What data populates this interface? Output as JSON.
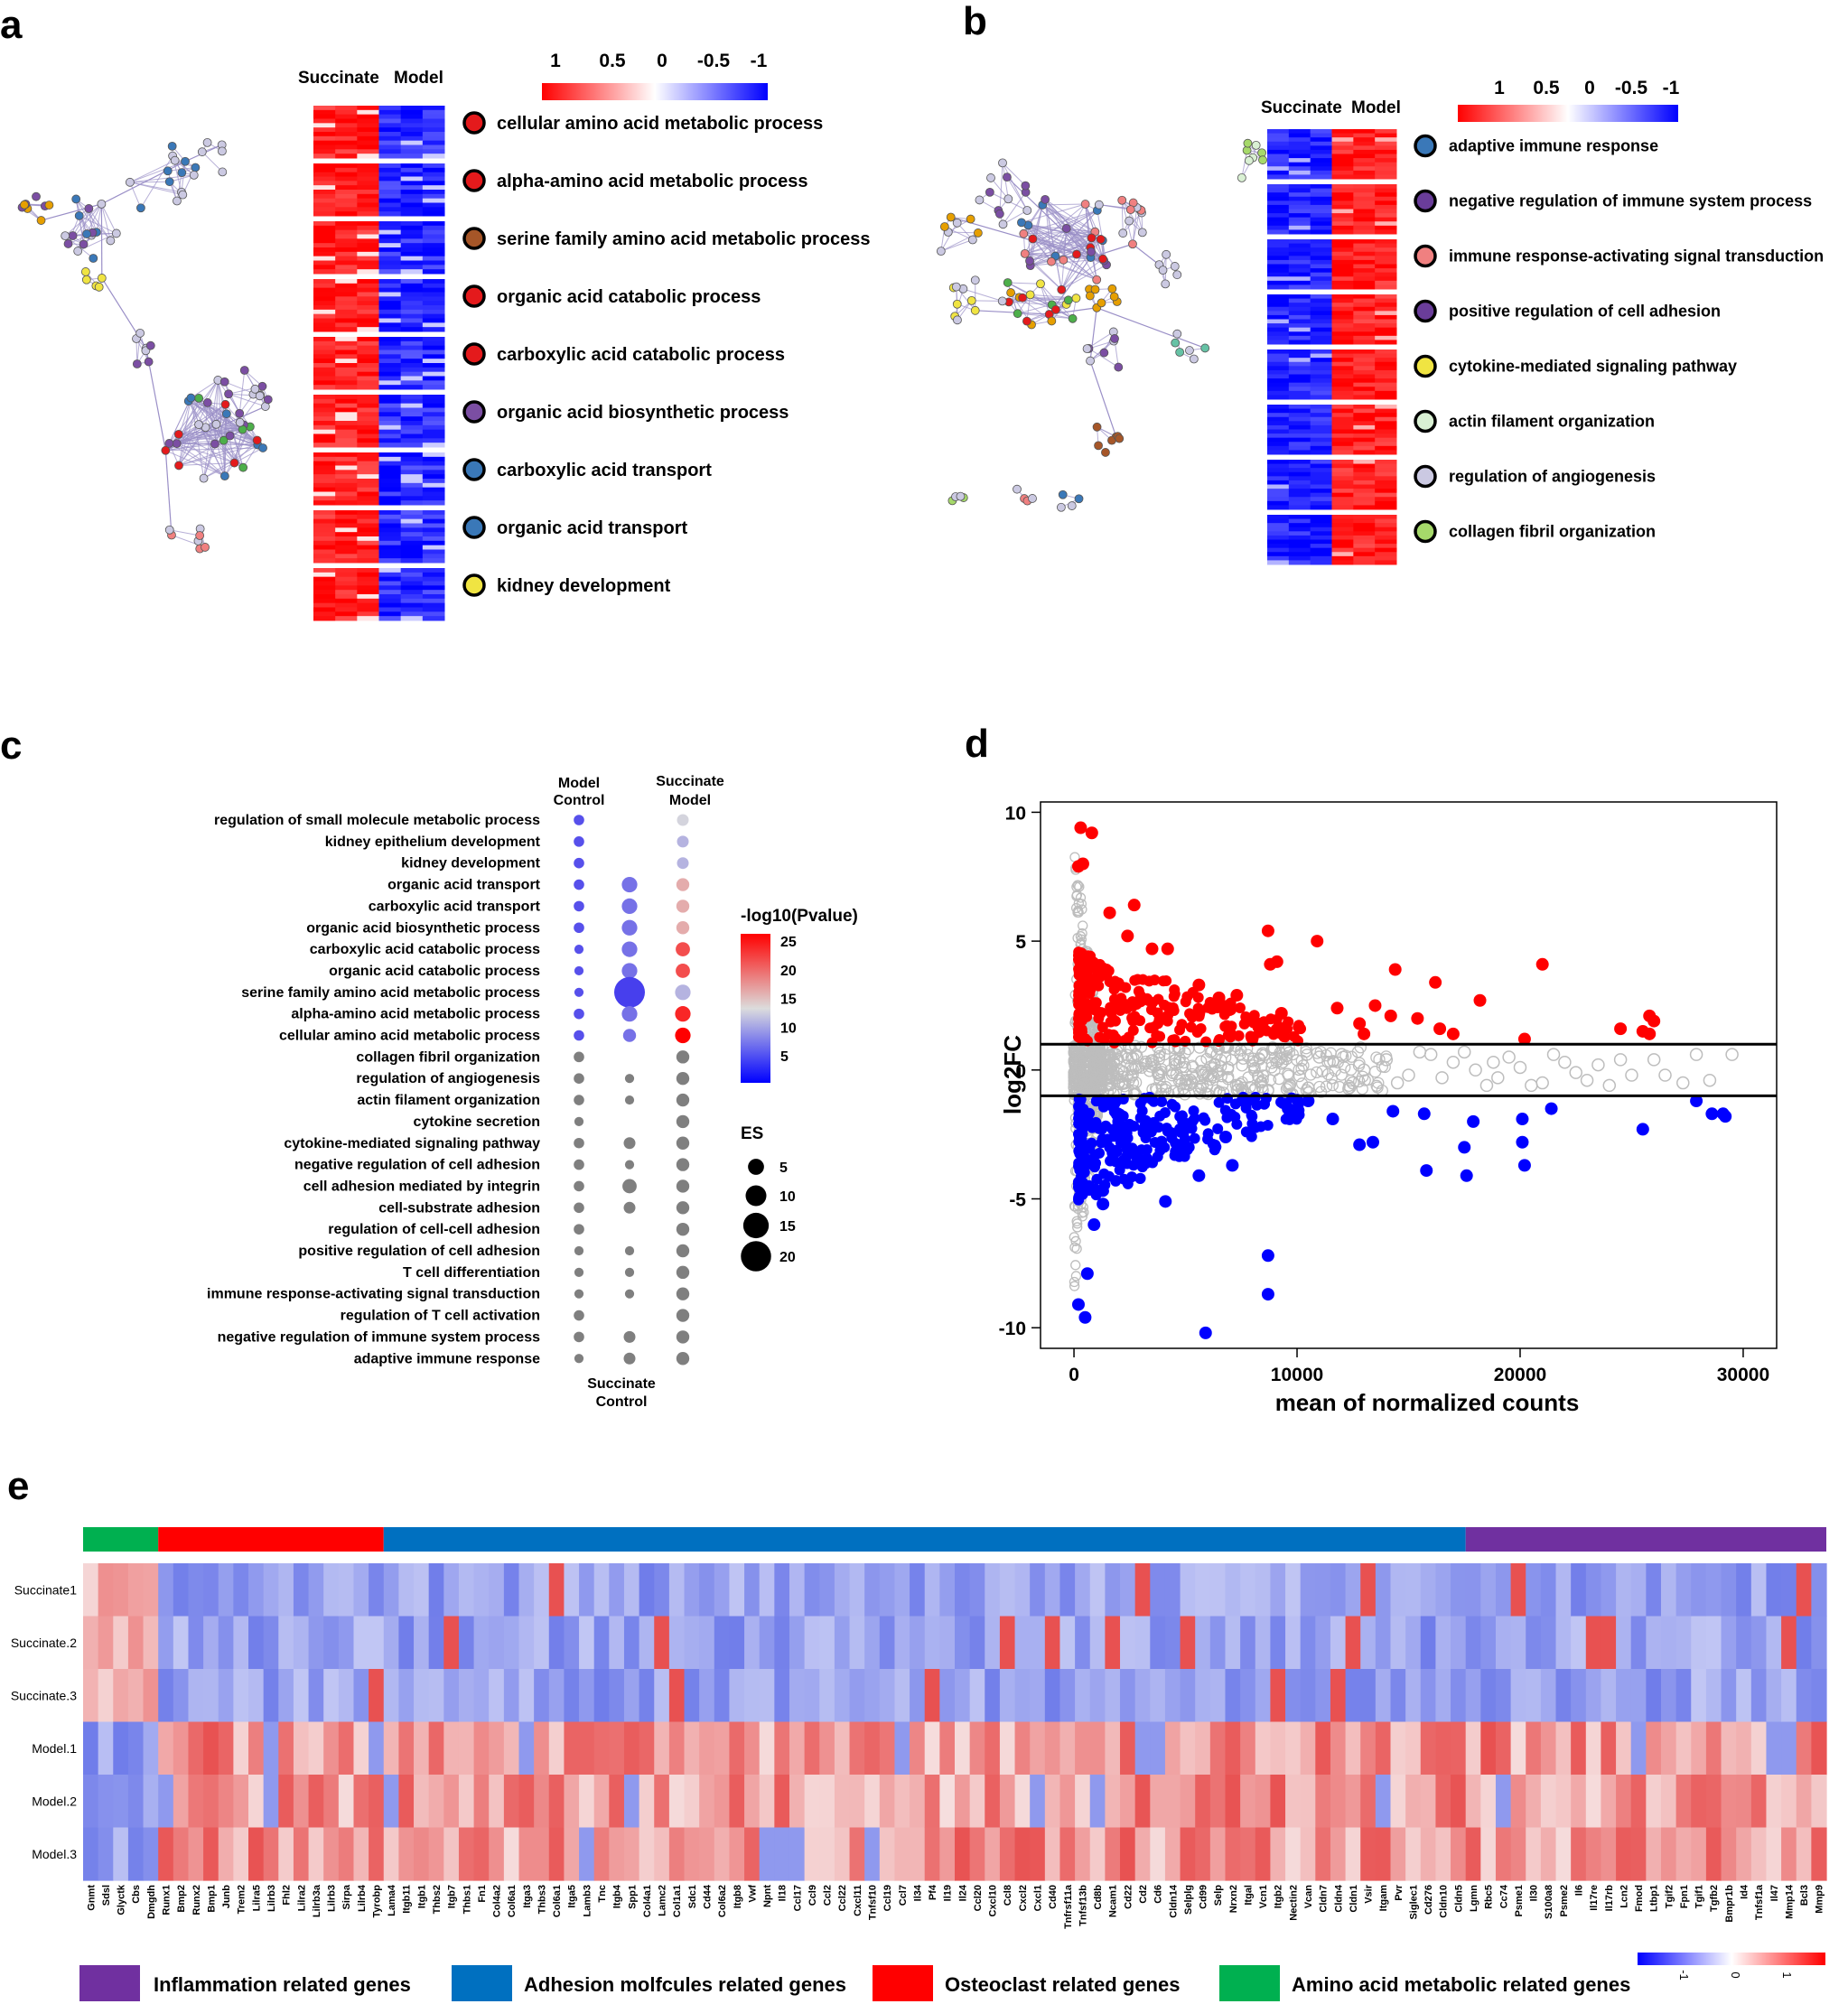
{
  "panel_labels": {
    "a": "a",
    "b": "b",
    "c": "c",
    "d": "d",
    "e": "e"
  },
  "colors": {
    "red": "#ff0000",
    "blue": "#0000ff",
    "grey": "#bdbdbd",
    "inflam": "#7030a0",
    "adhesion": "#0070c0",
    "osteo": "#ff0000",
    "amino": "#00b050"
  },
  "chart_data": [
    {
      "id": "a",
      "type": "heatmap",
      "columns": [
        "Succinate",
        "Model"
      ],
      "legend_ticks": [
        "1",
        "0.5",
        "0",
        "-0.5",
        "-1"
      ],
      "pattern": "Succinate high (red), Model low (blue)",
      "terms": [
        {
          "label": "cellular amino acid metabolic process",
          "color": "#e41a1c"
        },
        {
          "label": "alpha-amino acid metabolic process",
          "color": "#e41a1c"
        },
        {
          "label": "serine family amino acid metabolic process",
          "color": "#a65628"
        },
        {
          "label": "organic acid catabolic process",
          "color": "#e41a1c"
        },
        {
          "label": "carboxylic acid catabolic process",
          "color": "#e41a1c"
        },
        {
          "label": "organic acid biosynthetic process",
          "color": "#7b4ea3"
        },
        {
          "label": "carboxylic acid transport",
          "color": "#3a78b8"
        },
        {
          "label": "organic acid transport",
          "color": "#3a78b8"
        },
        {
          "label": "kidney development",
          "color": "#f0e442"
        }
      ]
    },
    {
      "id": "b",
      "type": "heatmap",
      "columns": [
        "Succinate",
        "Model"
      ],
      "legend_ticks": [
        "1",
        "0.5",
        "0",
        "-0.5",
        "-1"
      ],
      "pattern": "Succinate low (blue), Model high (red)",
      "terms": [
        {
          "label": "adaptive immune response",
          "color": "#3a78b8"
        },
        {
          "label": "negative regulation of immune system process",
          "color": "#6a3d9a"
        },
        {
          "label": "immune response-activating signal transduction",
          "color": "#f08080"
        },
        {
          "label": "positive regulation of cell adhesion",
          "color": "#6a3d9a"
        },
        {
          "label": "cytokine-mediated signaling pathway",
          "color": "#f0e442"
        },
        {
          "label": "actin filament organization",
          "color": "#d9f0d3"
        },
        {
          "label": "regulation of angiogenesis",
          "color": "#cbc9e2"
        },
        {
          "label": "collagen fibril organization",
          "color": "#a6d96a"
        }
      ]
    },
    {
      "id": "c",
      "type": "scatter",
      "subtype": "dot plot",
      "x": [
        "Model Control",
        "Succinate Control",
        "Succinate Model"
      ],
      "x_top": [
        {
          "line1": "Model",
          "line2": "Control"
        },
        {
          "line1": "Succinate",
          "line2": "Model"
        }
      ],
      "x_bottom": {
        "line1": "Succinate",
        "line2": "Control"
      },
      "color_legend": {
        "title": "-log10(Pvalue)",
        "ticks": [
          "25",
          "20",
          "15",
          "10",
          "5"
        ]
      },
      "size_legend": {
        "title": "ES",
        "ticks": [
          "5",
          "10",
          "15",
          "20"
        ]
      },
      "rows": [
        {
          "term": "regulation of small molecule metabolic process",
          "mc": [
            4,
            6
          ],
          "sc": null,
          "sm": [
            5,
            14
          ]
        },
        {
          "term": "kidney epithelium development",
          "mc": [
            4,
            6
          ],
          "sc": null,
          "sm": [
            5,
            12
          ]
        },
        {
          "term": "kidney development",
          "mc": [
            4,
            6
          ],
          "sc": null,
          "sm": [
            5,
            12
          ]
        },
        {
          "term": "organic acid transport",
          "mc": [
            4,
            6
          ],
          "sc": [
            8,
            8
          ],
          "sm": [
            6,
            17
          ]
        },
        {
          "term": "carboxylic acid transport",
          "mc": [
            4,
            6
          ],
          "sc": [
            8,
            8
          ],
          "sm": [
            6,
            17
          ]
        },
        {
          "term": "organic acid biosynthetic process",
          "mc": [
            4,
            6
          ],
          "sc": [
            8,
            8
          ],
          "sm": [
            6,
            17
          ]
        },
        {
          "term": "carboxylic acid catabolic process",
          "mc": [
            3,
            6
          ],
          "sc": [
            8,
            8
          ],
          "sm": [
            7,
            22
          ]
        },
        {
          "term": "organic acid catabolic process",
          "mc": [
            3,
            6
          ],
          "sc": [
            8,
            8
          ],
          "sm": [
            7,
            22
          ]
        },
        {
          "term": "serine family amino acid metabolic process",
          "mc": [
            3,
            6
          ],
          "sc": [
            20,
            5
          ],
          "sm": [
            8,
            12
          ]
        },
        {
          "term": "alpha-amino acid metabolic process",
          "mc": [
            4,
            6
          ],
          "sc": [
            8,
            8
          ],
          "sm": [
            8,
            24
          ]
        },
        {
          "term": "cellular amino acid metabolic process",
          "mc": [
            4,
            6
          ],
          "sc": [
            6,
            8
          ],
          "sm": [
            8,
            26
          ]
        },
        {
          "term": "collagen fibril organization",
          "mc": [
            4,
            null
          ],
          "sc": null,
          "sm": [
            6,
            null
          ]
        },
        {
          "term": "regulation of angiogenesis",
          "mc": [
            4,
            null
          ],
          "sc": [
            3,
            null
          ],
          "sm": [
            6,
            null
          ]
        },
        {
          "term": "actin filament organization",
          "mc": [
            4,
            null
          ],
          "sc": [
            3,
            null
          ],
          "sm": [
            6,
            null
          ]
        },
        {
          "term": "cytokine secretion",
          "mc": [
            3,
            null
          ],
          "sc": null,
          "sm": [
            6,
            null
          ]
        },
        {
          "term": "cytokine-mediated signaling pathway",
          "mc": [
            4,
            null
          ],
          "sc": [
            5,
            null
          ],
          "sm": [
            6,
            null
          ]
        },
        {
          "term": "negative regulation of cell adhesion",
          "mc": [
            4,
            null
          ],
          "sc": [
            3,
            null
          ],
          "sm": [
            6,
            null
          ]
        },
        {
          "term": "cell adhesion mediated by integrin",
          "mc": [
            4,
            null
          ],
          "sc": [
            7,
            null
          ],
          "sm": [
            6,
            null
          ]
        },
        {
          "term": "cell-substrate adhesion",
          "mc": [
            4,
            null
          ],
          "sc": [
            5,
            null
          ],
          "sm": [
            6,
            null
          ]
        },
        {
          "term": "regulation of cell-cell adhesion",
          "mc": [
            4,
            null
          ],
          "sc": null,
          "sm": [
            6,
            null
          ]
        },
        {
          "term": "positive regulation of cell adhesion",
          "mc": [
            3,
            null
          ],
          "sc": [
            3,
            null
          ],
          "sm": [
            6,
            null
          ]
        },
        {
          "term": "T cell differentiation",
          "mc": [
            3,
            null
          ],
          "sc": [
            3,
            null
          ],
          "sm": [
            6,
            null
          ]
        },
        {
          "term": "immune response-activating signal transduction",
          "mc": [
            3,
            null
          ],
          "sc": [
            3,
            null
          ],
          "sm": [
            6,
            null
          ]
        },
        {
          "term": "regulation of T cell activation",
          "mc": [
            4,
            null
          ],
          "sc": null,
          "sm": [
            6,
            null
          ]
        },
        {
          "term": "negative regulation of immune system process",
          "mc": [
            4,
            null
          ],
          "sc": [
            5,
            null
          ],
          "sm": [
            6,
            null
          ]
        },
        {
          "term": "adaptive immune response",
          "mc": [
            3,
            null
          ],
          "sc": [
            5,
            null
          ],
          "sm": [
            6,
            null
          ]
        }
      ]
    },
    {
      "id": "d",
      "type": "scatter",
      "subtype": "MA plot",
      "xlabel": "mean of normalized counts",
      "ylabel": "log2FC",
      "xlim": [
        -1500,
        31500
      ],
      "ylim": [
        -10.8,
        10.4
      ],
      "xticks": [
        0,
        10000,
        20000,
        30000
      ],
      "yticks": [
        10,
        5,
        0,
        -5,
        -10
      ],
      "thresholds": [
        1,
        -1
      ],
      "up_outliers": [
        [
          300,
          9.4
        ],
        [
          800,
          9.2
        ],
        [
          400,
          8.0
        ],
        [
          200,
          7.9
        ],
        [
          2700,
          6.4
        ],
        [
          1600,
          6.1
        ],
        [
          8700,
          5.4
        ],
        [
          10900,
          5.0
        ],
        [
          2400,
          5.2
        ],
        [
          3500,
          4.7
        ],
        [
          4200,
          4.7
        ],
        [
          9100,
          4.2
        ],
        [
          8800,
          4.1
        ],
        [
          21000,
          4.1
        ],
        [
          14400,
          3.9
        ],
        [
          16200,
          3.4
        ],
        [
          18200,
          2.7
        ],
        [
          13500,
          2.5
        ],
        [
          7300,
          2.9
        ],
        [
          5600,
          3.3
        ],
        [
          11800,
          2.4
        ],
        [
          14200,
          2.1
        ],
        [
          15400,
          2.0
        ],
        [
          12800,
          1.8
        ],
        [
          16400,
          1.6
        ],
        [
          17000,
          1.4
        ],
        [
          24500,
          1.6
        ],
        [
          25800,
          2.1
        ],
        [
          26000,
          1.9
        ],
        [
          25500,
          1.5
        ],
        [
          25800,
          1.4
        ],
        [
          20200,
          1.2
        ],
        [
          13000,
          1.4
        ],
        [
          9300,
          2.2
        ],
        [
          6500,
          2.8
        ]
      ],
      "down_outliers": [
        [
          5900,
          -10.2
        ],
        [
          500,
          -9.6
        ],
        [
          200,
          -9.1
        ],
        [
          8700,
          -8.7
        ],
        [
          8700,
          -7.2
        ],
        [
          600,
          -7.9
        ],
        [
          20200,
          -3.7
        ],
        [
          17600,
          -4.1
        ],
        [
          15800,
          -3.9
        ],
        [
          20100,
          -2.8
        ],
        [
          17500,
          -3.0
        ],
        [
          12800,
          -2.9
        ],
        [
          13400,
          -2.8
        ],
        [
          10500,
          -1.2
        ],
        [
          11600,
          -1.9
        ],
        [
          7100,
          -3.7
        ],
        [
          5600,
          -4.1
        ],
        [
          3200,
          -3.6
        ],
        [
          2500,
          -3.1
        ],
        [
          6800,
          -2.6
        ],
        [
          20100,
          -1.9
        ],
        [
          17900,
          -2.0
        ],
        [
          21400,
          -1.5
        ],
        [
          25500,
          -2.3
        ],
        [
          27900,
          -1.2
        ],
        [
          28600,
          -1.7
        ],
        [
          29100,
          -1.7
        ],
        [
          29200,
          -1.8
        ],
        [
          15700,
          -1.7
        ],
        [
          5000,
          -2.1
        ],
        [
          900,
          -6.0
        ],
        [
          1300,
          -5.2
        ],
        [
          9600,
          -1.5
        ],
        [
          14300,
          -1.6
        ],
        [
          2000,
          -2.0
        ],
        [
          4100,
          -5.1
        ]
      ],
      "ns_outliers": [
        [
          12000,
          0.6
        ],
        [
          14000,
          0.4
        ],
        [
          15000,
          -0.2
        ],
        [
          16000,
          0.6
        ],
        [
          17000,
          0.3
        ],
        [
          18000,
          0.0
        ],
        [
          18500,
          -0.6
        ],
        [
          19000,
          -0.3
        ],
        [
          20000,
          0.1
        ],
        [
          21000,
          -0.5
        ],
        [
          22000,
          0.3
        ],
        [
          22500,
          -0.1
        ],
        [
          23000,
          -0.4
        ],
        [
          24500,
          0.4
        ],
        [
          25000,
          -0.2
        ],
        [
          26000,
          0.4
        ],
        [
          27300,
          -0.5
        ],
        [
          27900,
          0.6
        ],
        [
          29500,
          0.6
        ],
        [
          12500,
          -0.5
        ],
        [
          13000,
          0.0
        ],
        [
          11000,
          0.5
        ],
        [
          10500,
          -0.7
        ],
        [
          9500,
          0.8
        ],
        [
          15500,
          0.7
        ],
        [
          16500,
          -0.3
        ],
        [
          17500,
          0.7
        ],
        [
          19500,
          0.5
        ],
        [
          20500,
          -0.6
        ],
        [
          21500,
          0.6
        ],
        [
          23500,
          0.2
        ],
        [
          24000,
          -0.6
        ],
        [
          26500,
          -0.2
        ],
        [
          28500,
          -0.4
        ],
        [
          14500,
          -0.5
        ],
        [
          18800,
          0.3
        ]
      ]
    },
    {
      "id": "e",
      "type": "heatmap",
      "rows": [
        "Succinate1",
        "Succinate.2",
        "Succinate.3",
        "Model.1",
        "Model.2",
        "Model.3"
      ],
      "genes": [
        "Gnmt",
        "Sdsl",
        "Glyctk",
        "Cbs",
        "Dmgdh",
        "Runx1",
        "Bmp2",
        "Runx2",
        "Bmp1",
        "Junb",
        "Trem2",
        "Lilra5",
        "Lilrb3",
        "Fhl2",
        "Lilra2",
        "Lilrb3a",
        "Lilrb3",
        "Sirpa",
        "Lilrb4",
        "Tyrobp",
        "Lama4",
        "Itgb11",
        "Itgb1",
        "Thbs2",
        "Itgb7",
        "Thbs1",
        "Fn1",
        "Col4a2",
        "Col6a1",
        "Itga3",
        "Thbs3",
        "Col6a1",
        "Itga5",
        "Lamb3",
        "Tnc",
        "Itgb4",
        "Spp1",
        "Col4a1",
        "Lamc2",
        "Col1a1",
        "Sdc1",
        "Cd44",
        "Col6a2",
        "Itgb8",
        "Vwf",
        "Npnt",
        "Il18",
        "Ccl17",
        "Ccl9",
        "Ccl2",
        "Ccl22",
        "Cxcl11",
        "Tnfsf10",
        "Ccl19",
        "Ccl7",
        "Il34",
        "Pf4",
        "Il19",
        "Il24",
        "Ccl20",
        "Cxcl10",
        "Ccl8",
        "Cxcl2",
        "Cxcl1",
        "Cd40",
        "Tnfrsf11a",
        "Tnfsf13b",
        "Cd8b",
        "Ncam1",
        "Cd22",
        "Cd2",
        "Cd6",
        "Cldn14",
        "Selplg",
        "Cd99",
        "Selp",
        "Nrxn2",
        "Itgal",
        "Vcn1",
        "Itgb2",
        "Nectin2",
        "Vcan",
        "Cldn7",
        "Cldn4",
        "Cldn1",
        "Vsir",
        "Itgam",
        "Pvr",
        "Siglec1",
        "Cd276",
        "Cldn10",
        "Cldn5",
        "Lgmn",
        "Rbc5",
        "Cc74",
        "Psme1",
        "Il30",
        "S100a8",
        "Psme2",
        "Il6",
        "Il17re",
        "Il17rb",
        "Lcn2",
        "Fmod",
        "Ltbp1",
        "Tgif2",
        "Fpn1",
        "Tgif1",
        "Tgfb2",
        "Bmpr1b",
        "Id4",
        "Tnfsf1a",
        "Il47",
        "Mmp14",
        "Bcl3",
        "Mmp9"
      ],
      "groups": [
        {
          "name": "Amino acid metabolic related genes",
          "color": "#00b050",
          "start": 0,
          "count": 5
        },
        {
          "name": "Osteoclast related genes",
          "color": "#ff0000",
          "start": 5,
          "count": 15
        },
        {
          "name": "Adhesion molfcules related genes",
          "color": "#0070c0",
          "start": 20,
          "count": 72
        },
        {
          "name": "Inflammation related genes",
          "color": "#7030a0",
          "start": 92,
          "count": 24
        }
      ],
      "color_ticks": [
        "-1",
        "0",
        "1"
      ]
    }
  ],
  "legend_e": {
    "inflam": "Inflammation related genes",
    "adhesion": "Adhesion molfcules related genes",
    "osteo": "Osteoclast related genes",
    "amino": "Amino acid metabolic related genes"
  }
}
